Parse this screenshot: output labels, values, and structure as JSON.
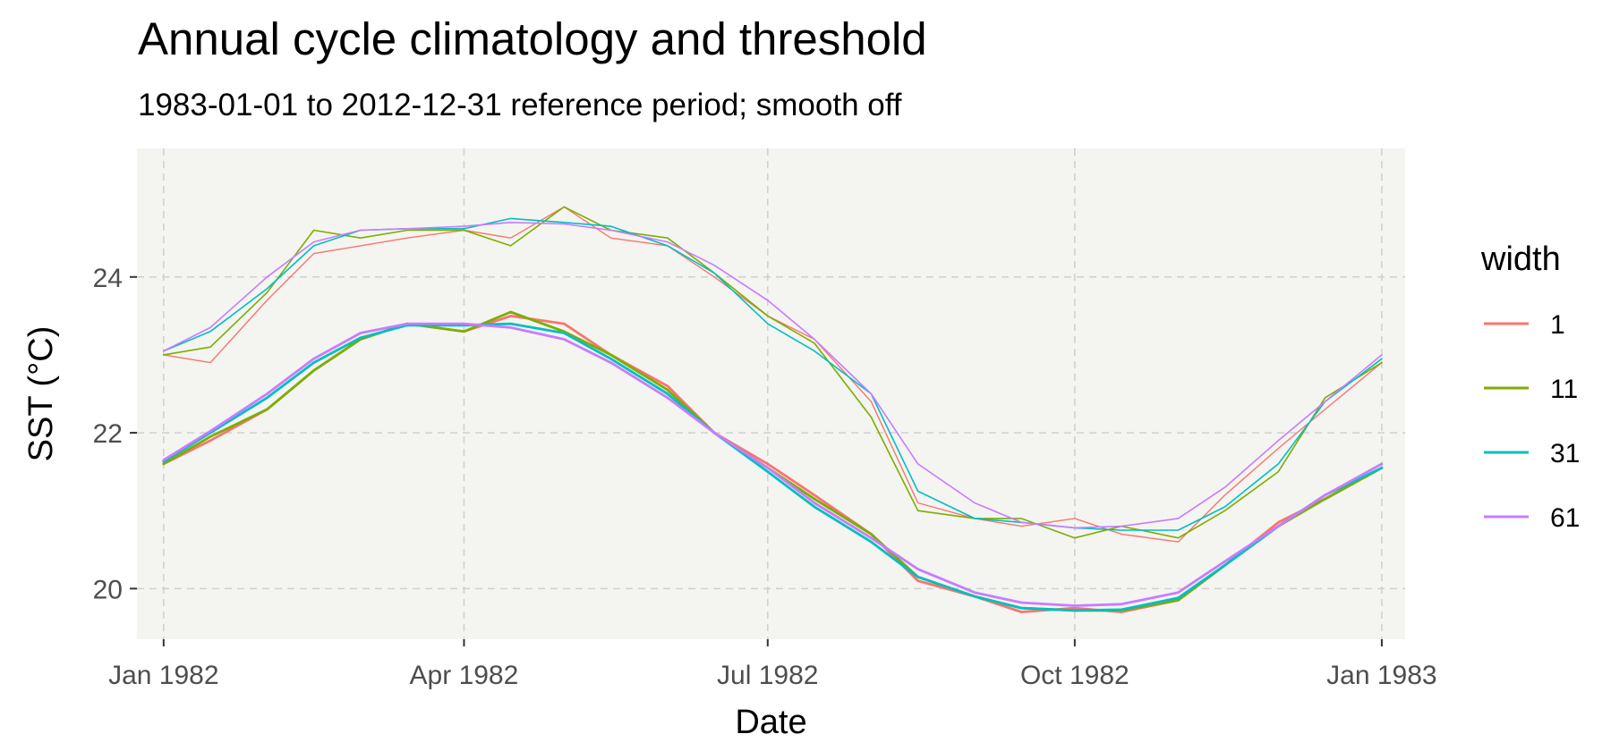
{
  "title": "Annual cycle climatology and threshold",
  "subtitle": "1983-01-01 to 2012-12-31 reference period; smooth off",
  "chart_data": {
    "type": "line",
    "xlabel": "Date",
    "ylabel": "SST (°C)",
    "xlim": [
      "1981-12-24",
      "1983-01-08"
    ],
    "ylim": [
      19.35,
      25.65
    ],
    "x_ticks": [
      {
        "date": "1982-01-01",
        "label": "Jan 1982"
      },
      {
        "date": "1982-04-01",
        "label": "Apr 1982"
      },
      {
        "date": "1982-07-01",
        "label": "Jul 1982"
      },
      {
        "date": "1982-10-01",
        "label": "Oct 1982"
      },
      {
        "date": "1983-01-01",
        "label": "Jan 1983"
      }
    ],
    "y_ticks": [
      20,
      22,
      24
    ],
    "grid": true,
    "legend": {
      "title": "width",
      "position": "right"
    },
    "series": [
      {
        "name": "1",
        "color": "#F8766D"
      },
      {
        "name": "11",
        "color": "#7CAE00"
      },
      {
        "name": "31",
        "color": "#00BFC4"
      },
      {
        "name": "61",
        "color": "#C77CFF"
      }
    ],
    "climatology": {
      "x": [
        "1982-01-01",
        "1982-01-15",
        "1982-02-01",
        "1982-02-15",
        "1982-03-01",
        "1982-03-15",
        "1982-04-01",
        "1982-04-15",
        "1982-05-01",
        "1982-05-15",
        "1982-06-01",
        "1982-06-15",
        "1982-07-01",
        "1982-07-15",
        "1982-08-01",
        "1982-08-15",
        "1982-09-01",
        "1982-09-15",
        "1982-10-01",
        "1982-10-15",
        "1982-11-01",
        "1982-11-15",
        "1982-12-01",
        "1982-12-15",
        "1983-01-01"
      ],
      "series": [
        {
          "name": "1",
          "values": [
            21.6,
            21.9,
            22.3,
            22.8,
            23.2,
            23.4,
            23.3,
            23.5,
            23.4,
            23.0,
            22.6,
            22.0,
            21.6,
            21.2,
            20.7,
            20.1,
            19.9,
            19.7,
            19.75,
            19.7,
            19.85,
            20.3,
            20.85,
            21.15,
            21.55
          ]
        },
        {
          "name": "11",
          "values": [
            21.6,
            21.95,
            22.3,
            22.8,
            23.2,
            23.4,
            23.3,
            23.55,
            23.3,
            23.0,
            22.55,
            22.0,
            21.55,
            21.15,
            20.7,
            20.15,
            19.9,
            19.75,
            19.72,
            19.72,
            19.85,
            20.3,
            20.8,
            21.15,
            21.55
          ]
        },
        {
          "name": "31",
          "values": [
            21.63,
            22.0,
            22.45,
            22.9,
            23.22,
            23.38,
            23.38,
            23.4,
            23.28,
            22.95,
            22.5,
            22.0,
            21.5,
            21.05,
            20.6,
            20.15,
            19.9,
            19.75,
            19.72,
            19.73,
            19.88,
            20.3,
            20.8,
            21.2,
            21.55
          ]
        },
        {
          "name": "61",
          "values": [
            21.65,
            22.02,
            22.5,
            22.95,
            23.28,
            23.4,
            23.4,
            23.35,
            23.2,
            22.9,
            22.45,
            22.0,
            21.55,
            21.1,
            20.65,
            20.25,
            19.95,
            19.82,
            19.78,
            19.8,
            19.95,
            20.35,
            20.8,
            21.2,
            21.6
          ]
        }
      ]
    },
    "threshold": {
      "x": [
        "1982-01-01",
        "1982-01-15",
        "1982-02-01",
        "1982-02-15",
        "1982-03-01",
        "1982-03-15",
        "1982-04-01",
        "1982-04-15",
        "1982-05-01",
        "1982-05-15",
        "1982-06-01",
        "1982-06-15",
        "1982-07-01",
        "1982-07-15",
        "1982-08-01",
        "1982-08-15",
        "1982-09-01",
        "1982-09-15",
        "1982-10-01",
        "1982-10-15",
        "1982-11-01",
        "1982-11-15",
        "1982-12-01",
        "1982-12-15",
        "1983-01-01"
      ],
      "series": [
        {
          "name": "1",
          "values": [
            23.0,
            22.9,
            23.7,
            24.3,
            24.4,
            24.5,
            24.6,
            24.5,
            24.9,
            24.5,
            24.4,
            24.0,
            23.5,
            23.2,
            22.4,
            21.1,
            20.9,
            20.8,
            20.9,
            20.7,
            20.6,
            21.2,
            21.8,
            22.3,
            22.9
          ]
        },
        {
          "name": "11",
          "values": [
            23.0,
            23.1,
            23.8,
            24.6,
            24.5,
            24.6,
            24.6,
            24.4,
            24.9,
            24.6,
            24.5,
            24.05,
            23.5,
            23.15,
            22.2,
            21.0,
            20.9,
            20.9,
            20.65,
            20.8,
            20.65,
            21.0,
            21.5,
            22.45,
            22.9
          ]
        },
        {
          "name": "31",
          "values": [
            23.05,
            23.3,
            23.85,
            24.4,
            24.6,
            24.62,
            24.62,
            24.75,
            24.7,
            24.65,
            24.4,
            24.05,
            23.4,
            23.05,
            22.5,
            21.25,
            20.9,
            20.85,
            20.78,
            20.75,
            20.75,
            21.05,
            21.6,
            22.4,
            22.95
          ]
        },
        {
          "name": "61",
          "values": [
            23.05,
            23.35,
            24.0,
            24.45,
            24.6,
            24.62,
            24.65,
            24.7,
            24.68,
            24.6,
            24.45,
            24.15,
            23.7,
            23.2,
            22.5,
            21.6,
            21.1,
            20.85,
            20.78,
            20.8,
            20.9,
            21.3,
            21.9,
            22.4,
            23.0
          ]
        }
      ]
    }
  }
}
